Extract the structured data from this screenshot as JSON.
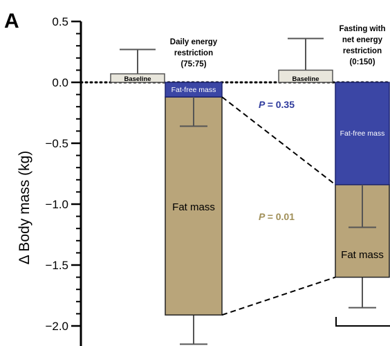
{
  "panel_letter": "A",
  "chart_data": {
    "type": "bar",
    "ylabel": "Δ Body mass (kg)",
    "ylim": [
      -2.15,
      0.5
    ],
    "yticks": [
      "0.5",
      "0.0",
      "−0.5",
      "−1.0",
      "−1.5",
      "−2.0"
    ],
    "ytick_values": [
      0.5,
      0.0,
      -0.5,
      -1.0,
      -1.5,
      -2.0
    ],
    "groups": [
      {
        "label_lines": [
          "Daily energy",
          "restriction",
          "(75:75)"
        ],
        "baseline": {
          "label": "Baseline",
          "value": 0.07,
          "error_top": 0.27
        },
        "fat_free_mass": {
          "label": "Fat-free mass",
          "value": -0.12,
          "error_bottom": -0.36
        },
        "fat_mass": {
          "label": "Fat mass",
          "value": -1.91,
          "error_bottom": -2.15
        }
      },
      {
        "label_lines": [
          "Fasting with",
          "net energy",
          "restriction",
          "(0:150)"
        ],
        "baseline": {
          "label": "Baseline",
          "value": 0.1,
          "error_top": 0.36
        },
        "fat_free_mass": {
          "label": "Fat-free mass",
          "value": -0.84,
          "error_bottom": -1.19
        },
        "fat_mass": {
          "label": "Fat mass",
          "value": -1.6,
          "error_bottom": -1.85
        }
      }
    ],
    "comparisons": [
      {
        "label": "P",
        "value": "= 0.35",
        "component": "fat_free_mass"
      },
      {
        "label": "P",
        "value": "= 0.01",
        "component": "fat_mass"
      }
    ],
    "colors": {
      "fat_free_mass": "#3b46a5",
      "fat_mass": "#b9a57a",
      "baseline": "#e8e6dc",
      "p_ffm": "#2e3a9c",
      "p_fm": "#a08f58"
    }
  }
}
